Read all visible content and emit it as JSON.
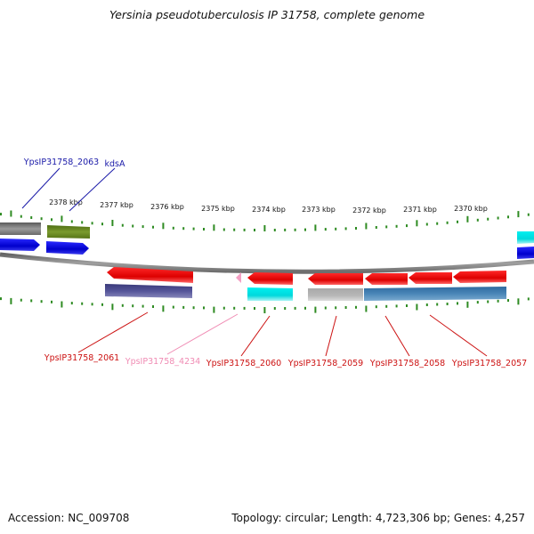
{
  "title": "Yersinia pseudotuberculosis IP 31758, complete genome",
  "footer": {
    "accession": "Accession: NC_009708",
    "stats": "Topology: circular; Length: 4,723,306 bp; Genes: 4,257"
  },
  "colors": {
    "backbone": "#8a8a8a",
    "ticks": "#2e8b22",
    "label_blue": "#1a1aa8",
    "label_red": "#cc1111",
    "label_pink": "#f08cb4"
  },
  "scale_labels": [
    "2378 kbp",
    "2377 kbp",
    "2376 kbp",
    "2375 kbp",
    "2374 kbp",
    "2373 kbp",
    "2372 kbp",
    "2371 kbp",
    "2370 kbp"
  ],
  "gene_labels": [
    {
      "text": "YpsIP31758_2063",
      "color": "#1a1aa8"
    },
    {
      "text": "kdsA",
      "color": "#1a1aa8"
    },
    {
      "text": "YpsIP31758_2061",
      "color": "#cc1111"
    },
    {
      "text": "YpsIP31758_4234",
      "color": "#f08cb4"
    },
    {
      "text": "YpsIP31758_2060",
      "color": "#cc1111"
    },
    {
      "text": "YpsIP31758_2059",
      "color": "#cc1111"
    },
    {
      "text": "YpsIP31758_2058",
      "color": "#cc1111"
    },
    {
      "text": "YpsIP31758_2057",
      "color": "#cc1111"
    }
  ]
}
